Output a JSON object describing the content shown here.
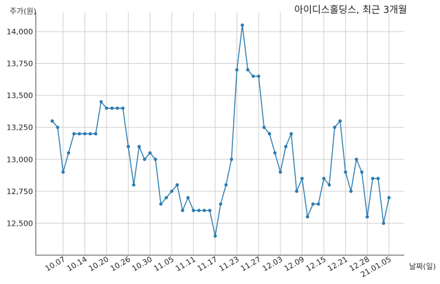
{
  "chart_data": {
    "type": "line",
    "title": "아이디스홀딩스, 최근 3개월",
    "ylabel": "주가(원)",
    "xlabel": "날짜(일)",
    "ylim": [
      12250,
      14150
    ],
    "yticks": [
      12500,
      12750,
      13000,
      13250,
      13500,
      13750,
      14000
    ],
    "ytick_labels": [
      "12,500",
      "12,750",
      "13,000",
      "13,250",
      "13,500",
      "13,750",
      "14,000"
    ],
    "xtick_positions": [
      2,
      6,
      10,
      14,
      18,
      22,
      26,
      30,
      34,
      38,
      42,
      46,
      50,
      54,
      58,
      62
    ],
    "xtick_labels": [
      "10.07",
      "10.14",
      "10.20",
      "10.26",
      "10.30",
      "11.05",
      "11.11",
      "11.17",
      "11.23",
      "11.27",
      "12.03",
      "12.09",
      "12.15",
      "12.21",
      "12.28",
      "21.01.05"
    ],
    "color": "#2b7bb0",
    "series": [
      {
        "values": [
          13300,
          13250,
          12900,
          13050,
          13200,
          13200,
          13200,
          13200,
          13200,
          13450,
          13400,
          13400,
          13400,
          13400,
          13100,
          12800,
          13100,
          13000,
          13050,
          13000,
          12650,
          12700,
          12750,
          12800,
          12600,
          12700,
          12600,
          12600,
          12600,
          12600,
          12400,
          12650,
          12800,
          13000,
          13700,
          14050,
          13700,
          13650,
          13650,
          13250,
          13200,
          13050,
          12900,
          13100,
          13200,
          12750,
          12850,
          12550,
          12650,
          12650,
          12850,
          12800,
          13250,
          13300,
          12900,
          12750,
          13000,
          12900,
          12550,
          12850,
          12850,
          12500,
          12700
        ]
      }
    ]
  }
}
